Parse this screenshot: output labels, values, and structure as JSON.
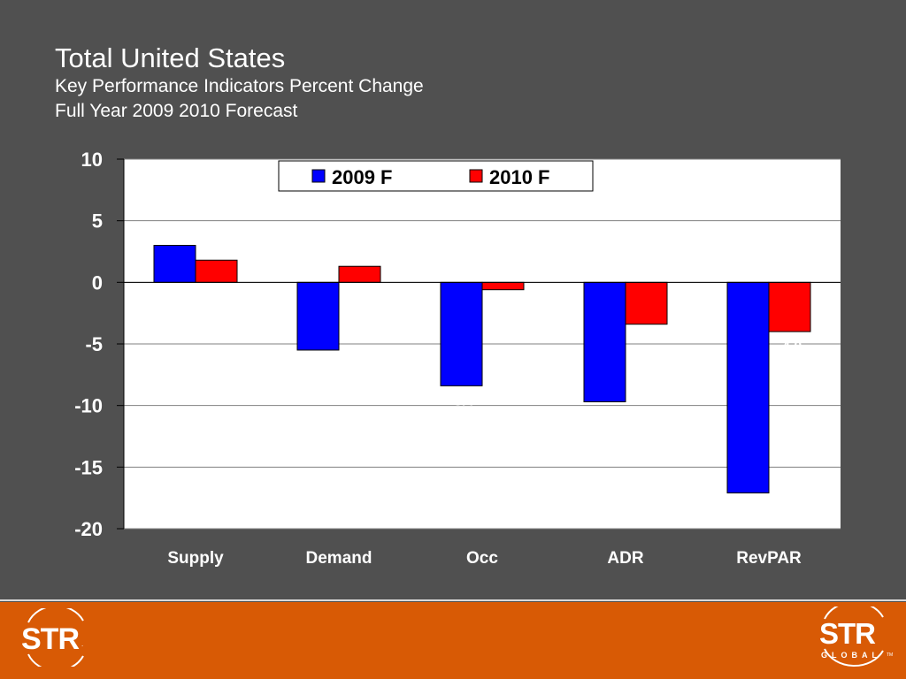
{
  "header": {
    "title": "Total United States",
    "subtitle1": "Key Performance Indicators Percent Change",
    "subtitle2": "Full Year 2009 2010 Forecast"
  },
  "chart_data": {
    "type": "bar",
    "title": "Total United States",
    "categories": [
      "Supply",
      "Demand",
      "Occ",
      "ADR",
      "RevPAR"
    ],
    "series": [
      {
        "name": "2009 F",
        "color": "#0000ff",
        "values": [
          3.0,
          -5.5,
          -8.4,
          -9.7,
          -17.1
        ]
      },
      {
        "name": "2010 F",
        "color": "#ff0000",
        "values": [
          1.8,
          1.3,
          -0.6,
          -3.4,
          -4.0
        ]
      }
    ],
    "ylim": [
      -20,
      10
    ],
    "yticks": [
      10,
      5,
      0,
      -5,
      -10,
      -15,
      -20
    ],
    "xlabel": "",
    "ylabel": "",
    "grid": true,
    "legend": "top-center",
    "plot_background": "#ffffff",
    "page_background": "#505050"
  },
  "footer": {
    "logo_left": {
      "word": "STR",
      "mark": "."
    },
    "logo_right": {
      "word": "STR",
      "sub": "GLOBAL",
      "mark": "TM"
    },
    "color": "#d85a05"
  }
}
